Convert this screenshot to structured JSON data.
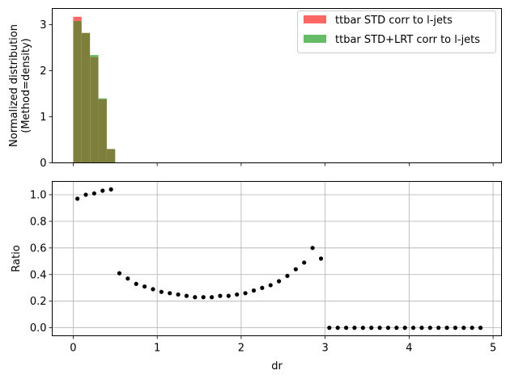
{
  "chart_data": [
    {
      "type": "bar",
      "panel": "top",
      "ylabel_line1": "Normalized distribution",
      "ylabel_line2": "(Method=density)",
      "xlim": [
        -0.25,
        5.1
      ],
      "ylim": [
        0,
        3.35
      ],
      "yticks": [
        "0",
        "1",
        "2",
        "3"
      ],
      "bin_edges": [
        0.0,
        0.1,
        0.2,
        0.3,
        0.4,
        0.5
      ],
      "legend_position": "top-right",
      "series": [
        {
          "name": "ttbar STD corr to l-jets",
          "color": "#ff6666",
          "values": [
            3.17,
            2.82,
            2.3,
            1.38,
            0.3
          ]
        },
        {
          "name": "ttbar STD+LRT corr to l-jets",
          "color": "#66bb66",
          "values": [
            3.08,
            2.82,
            2.34,
            1.4,
            0.3
          ]
        }
      ],
      "overlap_color": "#7f7f3d"
    },
    {
      "type": "scatter",
      "panel": "bottom",
      "xlabel": "dr",
      "ylabel": "Ratio",
      "xlim": [
        -0.25,
        5.1
      ],
      "ylim": [
        -0.06,
        1.1
      ],
      "xticks": [
        "0",
        "1",
        "2",
        "3",
        "4",
        "5"
      ],
      "yticks": [
        "0.0",
        "0.2",
        "0.4",
        "0.6",
        "0.8",
        "1.0"
      ],
      "grid": true,
      "marker_color": "#000000",
      "points": [
        [
          0.05,
          0.97
        ],
        [
          0.15,
          1.0
        ],
        [
          0.25,
          1.01
        ],
        [
          0.35,
          1.03
        ],
        [
          0.45,
          1.04
        ],
        [
          0.55,
          0.41
        ],
        [
          0.65,
          0.37
        ],
        [
          0.75,
          0.33
        ],
        [
          0.85,
          0.31
        ],
        [
          0.95,
          0.29
        ],
        [
          1.05,
          0.27
        ],
        [
          1.15,
          0.26
        ],
        [
          1.25,
          0.25
        ],
        [
          1.35,
          0.24
        ],
        [
          1.45,
          0.23
        ],
        [
          1.55,
          0.23
        ],
        [
          1.65,
          0.23
        ],
        [
          1.75,
          0.24
        ],
        [
          1.85,
          0.24
        ],
        [
          1.95,
          0.25
        ],
        [
          2.05,
          0.26
        ],
        [
          2.15,
          0.28
        ],
        [
          2.25,
          0.3
        ],
        [
          2.35,
          0.32
        ],
        [
          2.45,
          0.35
        ],
        [
          2.55,
          0.39
        ],
        [
          2.65,
          0.44
        ],
        [
          2.75,
          0.49
        ],
        [
          2.85,
          0.6
        ],
        [
          2.95,
          0.52
        ],
        [
          3.05,
          0.0
        ],
        [
          3.15,
          0.0
        ],
        [
          3.25,
          0.0
        ],
        [
          3.35,
          0.0
        ],
        [
          3.45,
          0.0
        ],
        [
          3.55,
          0.0
        ],
        [
          3.65,
          0.0
        ],
        [
          3.75,
          0.0
        ],
        [
          3.85,
          0.0
        ],
        [
          3.95,
          0.0
        ],
        [
          4.05,
          0.0
        ],
        [
          4.15,
          0.0
        ],
        [
          4.25,
          0.0
        ],
        [
          4.35,
          0.0
        ],
        [
          4.45,
          0.0
        ],
        [
          4.55,
          0.0
        ],
        [
          4.65,
          0.0
        ],
        [
          4.75,
          0.0
        ],
        [
          4.85,
          0.0
        ]
      ]
    }
  ]
}
